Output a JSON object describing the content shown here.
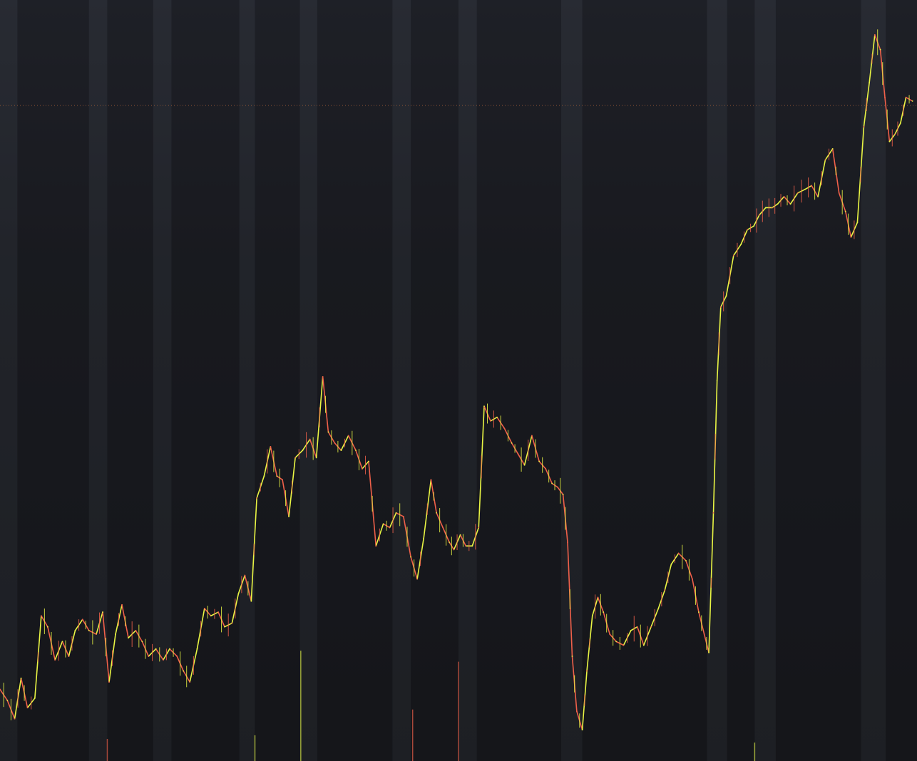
{
  "chart_data": {
    "type": "line",
    "title": "",
    "xlabel": "",
    "ylabel": "",
    "grid": false,
    "legend": "none",
    "xlim": [
      0,
      100
    ],
    "ylim": [
      0,
      100
    ],
    "reference_line": 87.4,
    "colors": {
      "up": "#e9f544",
      "down": "#f0604a",
      "volume_up": "#9aa63a",
      "volume_down": "#a8483a",
      "reference_line": "#b0643a",
      "band_dark": "#131418",
      "band_light": "#2a2d35"
    },
    "session_bands": [
      {
        "x_start": 0.0,
        "x_end": 1.9,
        "tone": "light"
      },
      {
        "x_start": 1.9,
        "x_end": 9.7,
        "tone": "dark"
      },
      {
        "x_start": 9.7,
        "x_end": 11.7,
        "tone": "light"
      },
      {
        "x_start": 11.7,
        "x_end": 16.7,
        "tone": "dark"
      },
      {
        "x_start": 16.7,
        "x_end": 18.7,
        "tone": "light"
      },
      {
        "x_start": 18.7,
        "x_end": 26.1,
        "tone": "dark"
      },
      {
        "x_start": 26.1,
        "x_end": 27.8,
        "tone": "light"
      },
      {
        "x_start": 27.8,
        "x_end": 32.7,
        "tone": "dark"
      },
      {
        "x_start": 32.7,
        "x_end": 34.6,
        "tone": "light"
      },
      {
        "x_start": 34.6,
        "x_end": 42.8,
        "tone": "dark"
      },
      {
        "x_start": 42.8,
        "x_end": 44.8,
        "tone": "light"
      },
      {
        "x_start": 44.8,
        "x_end": 50.0,
        "tone": "dark"
      },
      {
        "x_start": 50.0,
        "x_end": 52.0,
        "tone": "light"
      },
      {
        "x_start": 52.0,
        "x_end": 61.2,
        "tone": "dark"
      },
      {
        "x_start": 61.2,
        "x_end": 63.5,
        "tone": "light"
      },
      {
        "x_start": 63.5,
        "x_end": 77.1,
        "tone": "dark"
      },
      {
        "x_start": 77.1,
        "x_end": 79.3,
        "tone": "light"
      },
      {
        "x_start": 79.3,
        "x_end": 82.3,
        "tone": "dark"
      },
      {
        "x_start": 82.3,
        "x_end": 84.6,
        "tone": "light"
      },
      {
        "x_start": 84.6,
        "x_end": 93.9,
        "tone": "dark"
      },
      {
        "x_start": 93.9,
        "x_end": 96.6,
        "tone": "light"
      },
      {
        "x_start": 96.6,
        "x_end": 100.0,
        "tone": "dark"
      }
    ],
    "series": [
      {
        "points": [
          [
            0.0,
            8.0
          ],
          [
            0.8,
            6.5
          ],
          [
            1.6,
            4.0
          ],
          [
            2.3,
            9.5
          ],
          [
            3.0,
            5.5
          ],
          [
            3.8,
            6.8
          ],
          [
            4.5,
            18.0
          ],
          [
            5.2,
            16.5
          ],
          [
            6.0,
            12.0
          ],
          [
            6.8,
            14.5
          ],
          [
            7.5,
            12.5
          ],
          [
            8.2,
            16.0
          ],
          [
            9.0,
            17.5
          ],
          [
            9.7,
            16.0
          ],
          [
            10.5,
            15.5
          ],
          [
            11.2,
            18.5
          ],
          [
            11.9,
            9.0
          ],
          [
            12.6,
            15.5
          ],
          [
            13.3,
            19.5
          ],
          [
            14.0,
            15.0
          ],
          [
            14.8,
            16.0
          ],
          [
            15.5,
            14.5
          ],
          [
            16.2,
            12.5
          ],
          [
            17.0,
            13.5
          ],
          [
            17.8,
            12.0
          ],
          [
            18.5,
            13.5
          ],
          [
            19.3,
            12.5
          ],
          [
            20.0,
            10.5
          ],
          [
            20.7,
            9.0
          ],
          [
            21.5,
            13.5
          ],
          [
            22.3,
            19.0
          ],
          [
            23.0,
            18.0
          ],
          [
            23.8,
            18.5
          ],
          [
            24.5,
            16.5
          ],
          [
            25.3,
            17.0
          ],
          [
            26.0,
            21.0
          ],
          [
            26.7,
            23.5
          ],
          [
            27.4,
            20.0
          ],
          [
            28.0,
            34.0
          ],
          [
            28.8,
            37.0
          ],
          [
            29.5,
            41.0
          ],
          [
            30.2,
            37.0
          ],
          [
            30.8,
            36.5
          ],
          [
            31.5,
            31.5
          ],
          [
            32.2,
            39.5
          ],
          [
            33.0,
            40.5
          ],
          [
            33.8,
            42.0
          ],
          [
            34.5,
            39.5
          ],
          [
            35.2,
            50.5
          ],
          [
            35.8,
            43.0
          ],
          [
            36.5,
            41.5
          ],
          [
            37.2,
            40.5
          ],
          [
            38.0,
            42.5
          ],
          [
            38.8,
            40.5
          ],
          [
            39.5,
            38.0
          ],
          [
            40.2,
            39.0
          ],
          [
            41.0,
            27.5
          ],
          [
            41.8,
            30.5
          ],
          [
            42.5,
            30.0
          ],
          [
            43.2,
            32.0
          ],
          [
            44.0,
            31.5
          ],
          [
            44.8,
            26.0
          ],
          [
            45.5,
            23.0
          ],
          [
            46.2,
            28.5
          ],
          [
            47.0,
            36.5
          ],
          [
            47.6,
            32.0
          ],
          [
            48.3,
            30.0
          ],
          [
            49.0,
            28.0
          ],
          [
            49.5,
            27.0
          ],
          [
            50.2,
            29.0
          ],
          [
            50.8,
            27.5
          ],
          [
            51.5,
            27.5
          ],
          [
            52.2,
            30.0
          ],
          [
            52.8,
            46.5
          ],
          [
            53.5,
            44.5
          ],
          [
            54.2,
            45.0
          ],
          [
            55.0,
            43.5
          ],
          [
            55.8,
            41.5
          ],
          [
            56.5,
            40.0
          ],
          [
            57.2,
            38.5
          ],
          [
            58.0,
            42.5
          ],
          [
            58.8,
            39.0
          ],
          [
            59.5,
            38.0
          ],
          [
            60.2,
            36.0
          ],
          [
            60.8,
            35.5
          ],
          [
            61.4,
            34.5
          ],
          [
            61.9,
            28.0
          ],
          [
            62.4,
            12.5
          ],
          [
            62.9,
            5.0
          ],
          [
            63.5,
            2.5
          ],
          [
            64.0,
            10.5
          ],
          [
            64.6,
            18.0
          ],
          [
            65.2,
            20.5
          ],
          [
            65.8,
            18.5
          ],
          [
            66.5,
            15.5
          ],
          [
            67.2,
            14.5
          ],
          [
            68.0,
            14.0
          ],
          [
            68.8,
            16.0
          ],
          [
            69.5,
            16.5
          ],
          [
            70.2,
            14.0
          ],
          [
            71.0,
            16.5
          ],
          [
            71.8,
            19.0
          ],
          [
            72.5,
            21.5
          ],
          [
            73.2,
            25.0
          ],
          [
            74.0,
            26.5
          ],
          [
            74.8,
            25.5
          ],
          [
            75.5,
            23.0
          ],
          [
            76.2,
            18.5
          ],
          [
            76.8,
            15.5
          ],
          [
            77.3,
            13.0
          ],
          [
            77.8,
            32.0
          ],
          [
            78.2,
            50.0
          ],
          [
            78.6,
            60.0
          ],
          [
            79.2,
            61.5
          ],
          [
            80.0,
            67.0
          ],
          [
            80.8,
            68.5
          ],
          [
            81.5,
            70.5
          ],
          [
            82.2,
            71.0
          ],
          [
            82.8,
            72.5
          ],
          [
            83.5,
            73.5
          ],
          [
            84.2,
            73.5
          ],
          [
            84.8,
            74.0
          ],
          [
            85.5,
            75.0
          ],
          [
            86.2,
            74.0
          ],
          [
            87.0,
            75.5
          ],
          [
            87.8,
            76.0
          ],
          [
            88.5,
            76.5
          ],
          [
            89.2,
            75.0
          ],
          [
            90.0,
            80.0
          ],
          [
            90.8,
            81.5
          ],
          [
            91.5,
            75.5
          ],
          [
            92.2,
            73.0
          ],
          [
            92.8,
            69.5
          ],
          [
            93.5,
            71.5
          ],
          [
            94.2,
            84.5
          ],
          [
            94.8,
            90.5
          ],
          [
            95.4,
            97.0
          ],
          [
            96.0,
            95.0
          ],
          [
            96.5,
            88.5
          ],
          [
            97.0,
            82.5
          ],
          [
            97.6,
            83.5
          ],
          [
            98.2,
            85.0
          ],
          [
            98.8,
            88.5
          ],
          [
            99.5,
            88.0
          ]
        ]
      }
    ],
    "volume": [
      {
        "x": 11.7,
        "value": 3.0,
        "direction": "down"
      },
      {
        "x": 27.8,
        "value": 3.5,
        "direction": "up"
      },
      {
        "x": 32.8,
        "value": 15.0,
        "direction": "up"
      },
      {
        "x": 45.0,
        "value": 7.0,
        "direction": "down"
      },
      {
        "x": 50.0,
        "value": 13.5,
        "direction": "down"
      },
      {
        "x": 82.3,
        "value": 2.5,
        "direction": "up"
      }
    ]
  }
}
